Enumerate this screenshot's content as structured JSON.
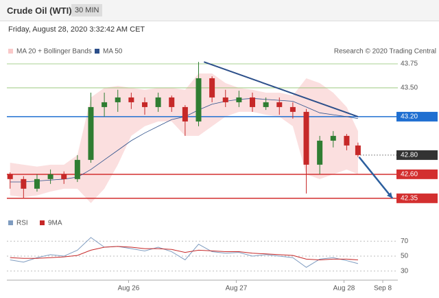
{
  "header": {
    "title": "Crude Oil (WTI)",
    "interval": "30 MIN",
    "date": "Friday, August 28, 2020 3:32:42 AM CET"
  },
  "chart_data": {
    "type": "candlestick",
    "source": "Research © 2020 Trading Central",
    "x": [
      24.9,
      25.025,
      25.15,
      25.275,
      25.4,
      25.525,
      25.65,
      25.775,
      25.9,
      26.025,
      26.15,
      26.275,
      26.4,
      26.525,
      26.65,
      26.775,
      26.9,
      27.025,
      27.15,
      27.275,
      27.4,
      27.525,
      27.65,
      27.775,
      27.9,
      28.025,
      28.13
    ],
    "open": [
      42.6,
      42.55,
      42.45,
      42.55,
      42.6,
      42.55,
      42.75,
      43.3,
      43.35,
      43.4,
      43.35,
      43.3,
      43.4,
      43.3,
      43.15,
      43.6,
      43.4,
      43.35,
      43.4,
      43.3,
      43.35,
      43.3,
      43.25,
      42.7,
      42.95,
      43.0,
      42.9
    ],
    "high": [
      42.62,
      42.58,
      42.6,
      42.65,
      42.63,
      42.8,
      43.45,
      43.45,
      43.48,
      43.45,
      43.4,
      43.45,
      43.42,
      43.32,
      43.77,
      43.62,
      43.48,
      43.47,
      43.45,
      43.4,
      43.4,
      43.35,
      43.28,
      43.0,
      43.05,
      43.02,
      42.93
    ],
    "low": [
      42.45,
      42.35,
      42.42,
      42.5,
      42.5,
      42.52,
      42.72,
      43.2,
      43.25,
      43.28,
      43.22,
      43.25,
      43.25,
      43.0,
      43.1,
      43.35,
      43.3,
      43.3,
      43.25,
      43.27,
      43.22,
      43.18,
      42.4,
      42.6,
      42.88,
      42.85,
      42.78
    ],
    "close": [
      42.55,
      42.45,
      42.55,
      42.6,
      42.55,
      42.75,
      43.3,
      43.35,
      43.4,
      43.35,
      43.3,
      43.4,
      43.3,
      43.15,
      43.6,
      43.4,
      43.35,
      43.4,
      43.3,
      43.35,
      43.3,
      43.25,
      42.7,
      42.95,
      43.0,
      42.9,
      42.8
    ],
    "up_color": "#2f7d32",
    "down_color": "#c62828",
    "bands": {
      "name": "MA 20 + Bollinger Bands",
      "color": "#f9c9c9",
      "upper": [
        42.72,
        42.7,
        42.68,
        42.7,
        42.7,
        42.8,
        43.4,
        43.5,
        43.52,
        43.5,
        43.48,
        43.5,
        43.5,
        43.48,
        43.65,
        43.65,
        43.55,
        43.5,
        43.48,
        43.45,
        43.45,
        43.42,
        43.6,
        43.55,
        43.45,
        43.3,
        43.05
      ],
      "lower": [
        42.38,
        42.36,
        42.38,
        42.42,
        42.45,
        42.45,
        42.3,
        42.45,
        42.7,
        43.0,
        43.1,
        43.15,
        43.15,
        43.0,
        43.0,
        43.1,
        43.2,
        43.25,
        43.25,
        43.22,
        43.2,
        43.1,
        42.6,
        42.55,
        42.6,
        42.65,
        42.6
      ]
    },
    "ma50": {
      "name": "MA 50",
      "color": "#2c4f8a",
      "values": [
        42.52,
        42.52,
        42.53,
        42.54,
        42.55,
        42.57,
        42.65,
        42.75,
        42.85,
        42.95,
        43.03,
        43.1,
        43.17,
        43.2,
        43.27,
        43.33,
        43.36,
        43.38,
        43.39,
        43.38,
        43.37,
        43.36,
        43.3,
        43.24,
        43.22,
        43.2,
        43.18
      ]
    },
    "levels": [
      {
        "value": 43.75,
        "color": "#8cc26b",
        "style": "text"
      },
      {
        "value": 43.5,
        "label": "43.50",
        "color": "#8cc26b",
        "style": "text"
      },
      {
        "value": 43.2,
        "label": "43.20",
        "color": "#1f6fd1",
        "style": "box"
      },
      {
        "value": 42.8,
        "label": "42.80",
        "color": "#333333",
        "style": "dotted-box"
      },
      {
        "value": 42.6,
        "label": "42.60",
        "color": "#d32f2f",
        "style": "box"
      },
      {
        "value": 42.35,
        "color": "#d32f2f",
        "style": "box"
      }
    ],
    "trendline": {
      "x": [
        26.7,
        28.13
      ],
      "y": [
        43.77,
        43.2
      ],
      "color": "#2c4f8a"
    },
    "arrow": {
      "x": [
        28.14,
        28.45
      ],
      "y": [
        42.78,
        42.35
      ],
      "color": "#2c5f9e"
    },
    "ylim": [
      42.27,
      43.95
    ],
    "xlim": [
      24.87,
      28.5
    ],
    "xticks": [
      {
        "value": 26,
        "label": "Aug 26"
      },
      {
        "value": 27,
        "label": "Aug 27"
      },
      {
        "value": 28,
        "label": "Aug 28"
      },
      {
        "value": 28.36,
        "label": "Sep 8"
      }
    ],
    "rsi": {
      "ylim": [
        16,
        85
      ],
      "yticks": [
        70,
        50,
        30
      ],
      "series": [
        {
          "name": "RSI",
          "color": "#7f9cc0",
          "values": [
            45,
            42,
            48,
            52,
            50,
            58,
            75,
            62,
            63,
            60,
            57,
            62,
            56,
            45,
            66,
            56,
            54,
            55,
            50,
            52,
            50,
            48,
            35,
            46,
            48,
            44,
            40
          ]
        },
        {
          "name": "9MA",
          "color": "#c62828",
          "values": [
            48,
            47,
            47,
            48,
            49,
            51,
            58,
            62,
            63,
            62,
            60,
            60,
            59,
            55,
            58,
            57,
            56,
            56,
            54,
            53,
            52,
            51,
            46,
            45,
            46,
            46,
            45
          ]
        }
      ]
    }
  }
}
